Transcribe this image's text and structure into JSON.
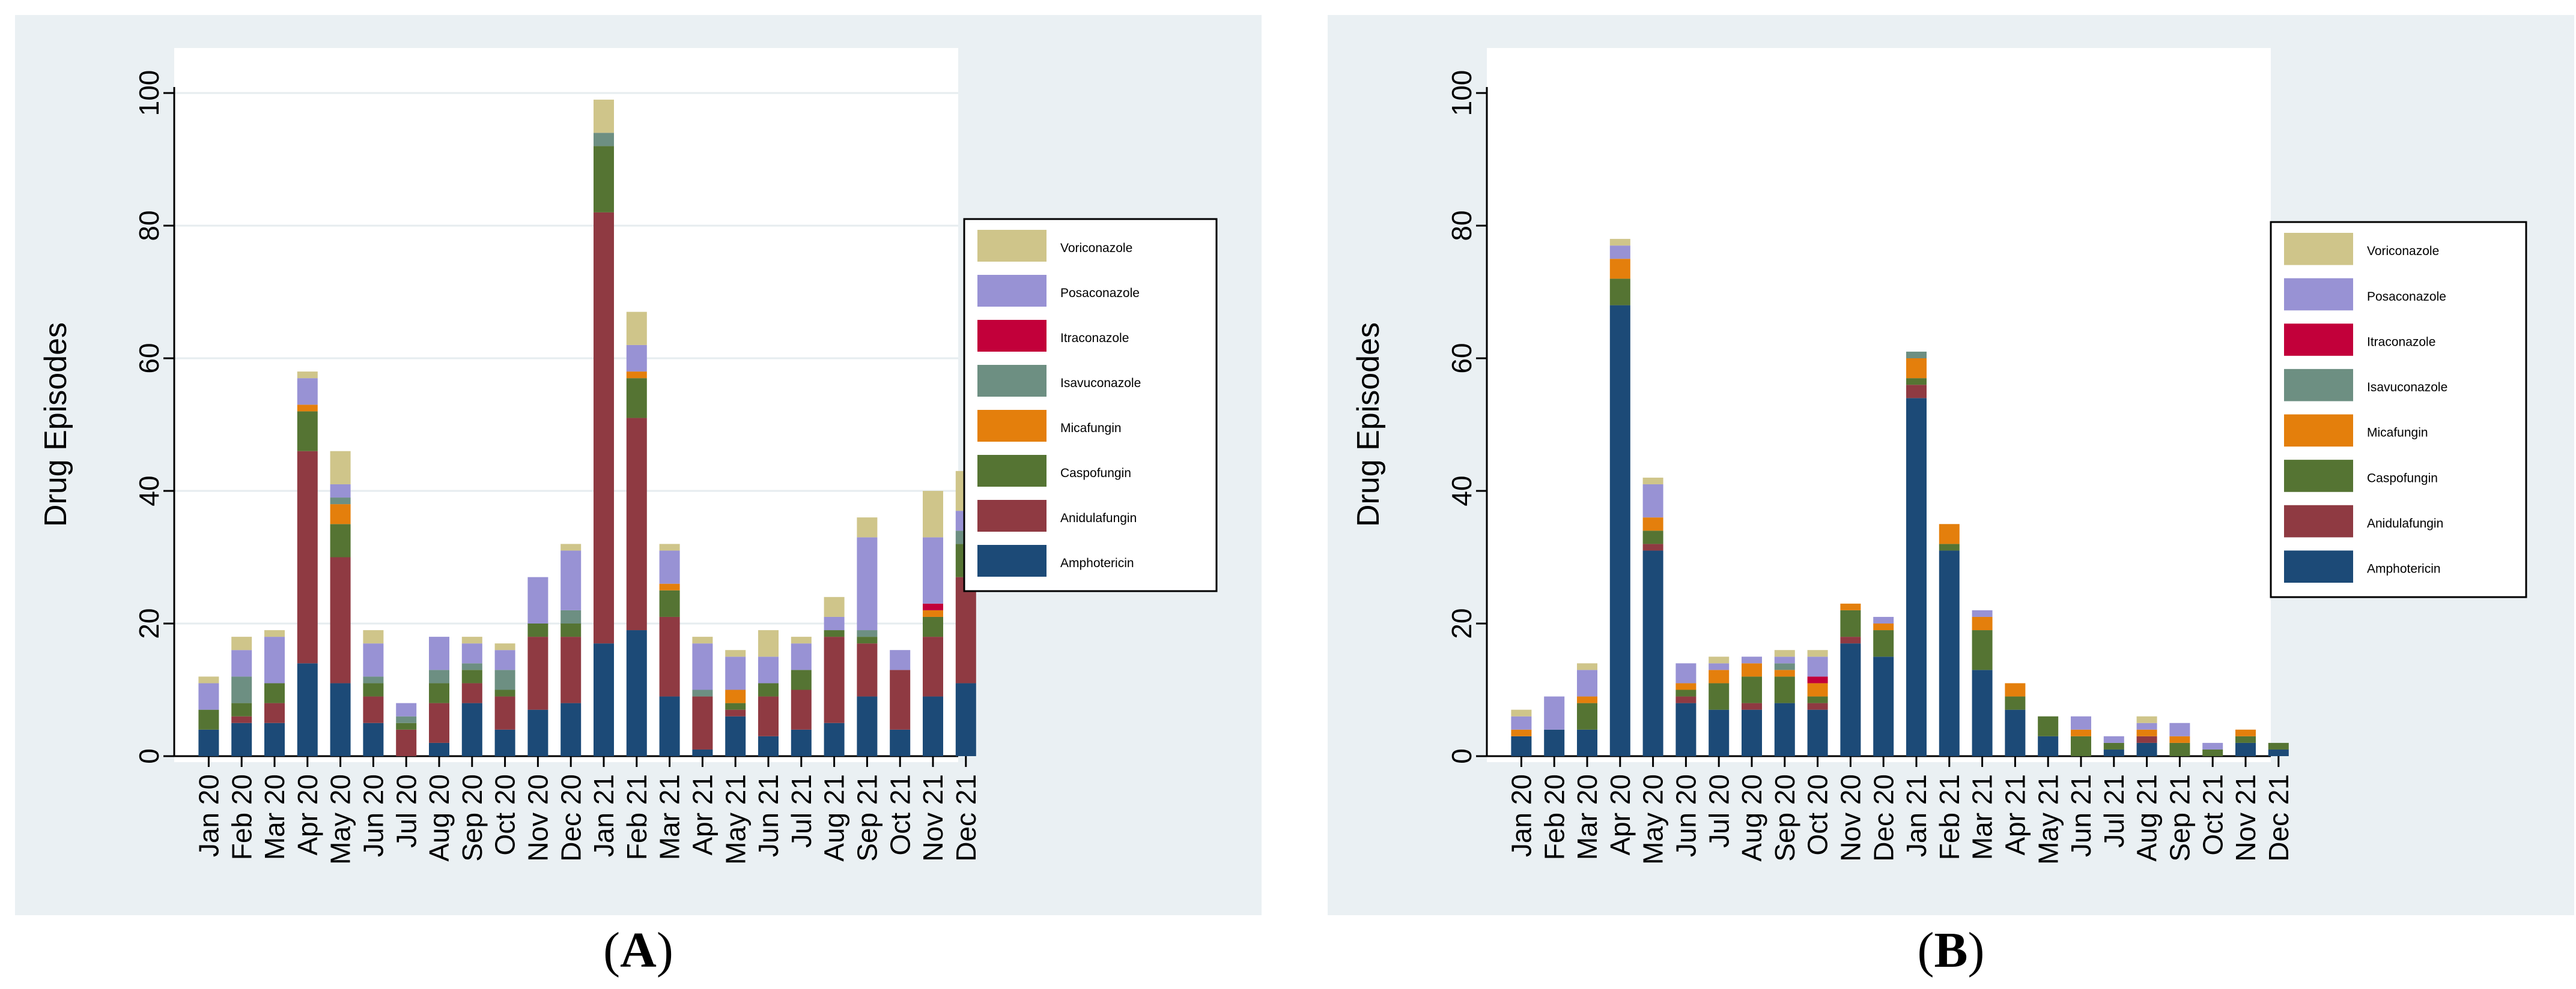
{
  "chart_data": [
    {
      "type": "bar",
      "stacked": true,
      "panel_label": "A",
      "ylabel": "Drug Episodes",
      "xlabel": "",
      "ylim": [
        0,
        100
      ],
      "yticks": [
        0,
        20,
        40,
        60,
        80,
        100
      ],
      "grid": true,
      "legend_position": "right",
      "categories": [
        "Jan 20",
        "Feb 20",
        "Mar 20",
        "Apr 20",
        "May 20",
        "Jun 20",
        "Jul 20",
        "Aug 20",
        "Sep 20",
        "Oct 20",
        "Nov 20",
        "Dec 20",
        "Jan 21",
        "Feb 21",
        "Mar 21",
        "Apr 21",
        "May 21",
        "Jun 21",
        "Jul 21",
        "Aug 21",
        "Sep 21",
        "Oct 21",
        "Nov 21",
        "Dec 21"
      ],
      "series": [
        {
          "name": "Amphotericin",
          "color": "#1c4a77",
          "values": [
            4,
            5,
            5,
            14,
            11,
            5,
            0,
            2,
            8,
            4,
            7,
            8,
            17,
            19,
            9,
            1,
            6,
            3,
            4,
            5,
            9,
            4,
            9,
            11
          ]
        },
        {
          "name": "Anidulafungin",
          "color": "#8f3a42",
          "values": [
            0,
            1,
            3,
            32,
            19,
            4,
            4,
            6,
            3,
            5,
            11,
            10,
            65,
            32,
            12,
            8,
            1,
            6,
            6,
            13,
            8,
            9,
            9,
            16
          ]
        },
        {
          "name": "Caspofungin",
          "color": "#557433",
          "values": [
            3,
            2,
            3,
            6,
            5,
            2,
            1,
            3,
            2,
            1,
            2,
            2,
            10,
            6,
            4,
            0,
            1,
            2,
            3,
            1,
            1,
            0,
            3,
            5
          ]
        },
        {
          "name": "Micafungin",
          "color": "#e47f0c",
          "values": [
            0,
            0,
            0,
            1,
            3,
            0,
            0,
            0,
            0,
            0,
            0,
            0,
            0,
            1,
            1,
            0,
            2,
            0,
            0,
            0,
            0,
            0,
            1,
            0
          ]
        },
        {
          "name": "Isavuconazole",
          "color": "#6d8f82",
          "values": [
            0,
            4,
            0,
            0,
            1,
            1,
            1,
            2,
            1,
            3,
            0,
            2,
            2,
            0,
            0,
            1,
            0,
            0,
            0,
            0,
            1,
            0,
            0,
            2
          ]
        },
        {
          "name": "Itraconazole",
          "color": "#c2003a",
          "values": [
            0,
            0,
            0,
            0,
            0,
            0,
            0,
            0,
            0,
            0,
            0,
            0,
            0,
            0,
            0,
            0,
            0,
            0,
            0,
            0,
            0,
            0,
            1,
            0
          ]
        },
        {
          "name": "Posaconazole",
          "color": "#9892d4",
          "values": [
            4,
            4,
            7,
            4,
            2,
            5,
            2,
            5,
            3,
            3,
            7,
            9,
            0,
            4,
            5,
            7,
            5,
            4,
            4,
            2,
            14,
            3,
            10,
            3
          ]
        },
        {
          "name": "Voriconazole",
          "color": "#cfc58a",
          "values": [
            1,
            2,
            1,
            1,
            5,
            2,
            0,
            0,
            1,
            1,
            0,
            1,
            5,
            5,
            1,
            1,
            1,
            4,
            1,
            3,
            3,
            0,
            7,
            6
          ]
        }
      ]
    },
    {
      "type": "bar",
      "stacked": true,
      "panel_label": "B",
      "ylabel": "Drug Episodes",
      "xlabel": "",
      "ylim": [
        0,
        100
      ],
      "yticks": [
        0,
        20,
        40,
        60,
        80,
        100
      ],
      "grid": false,
      "legend_position": "right",
      "categories": [
        "Jan 20",
        "Feb 20",
        "Mar 20",
        "Apr 20",
        "May 20",
        "Jun 20",
        "Jul 20",
        "Aug 20",
        "Sep 20",
        "Oct 20",
        "Nov 20",
        "Dec 20",
        "Jan 21",
        "Feb 21",
        "Mar 21",
        "Apr 21",
        "May 21",
        "Jun 21",
        "Jul 21",
        "Aug 21",
        "Sep 21",
        "Oct 21",
        "Nov 21",
        "Dec 21"
      ],
      "series": [
        {
          "name": "Amphotericin",
          "color": "#1c4a77",
          "values": [
            3,
            4,
            4,
            68,
            31,
            8,
            7,
            7,
            8,
            7,
            17,
            15,
            54,
            31,
            13,
            7,
            3,
            0,
            1,
            2,
            0,
            0,
            2,
            1
          ]
        },
        {
          "name": "Anidulafungin",
          "color": "#8f3a42",
          "values": [
            0,
            0,
            0,
            0,
            1,
            1,
            0,
            1,
            0,
            1,
            1,
            0,
            2,
            0,
            0,
            0,
            0,
            0,
            0,
            1,
            0,
            0,
            0,
            0
          ]
        },
        {
          "name": "Caspofungin",
          "color": "#557433",
          "values": [
            0,
            0,
            4,
            4,
            2,
            1,
            4,
            4,
            4,
            1,
            4,
            4,
            1,
            1,
            6,
            2,
            3,
            3,
            1,
            0,
            2,
            1,
            1,
            1
          ]
        },
        {
          "name": "Micafungin",
          "color": "#e47f0c",
          "values": [
            1,
            0,
            1,
            3,
            2,
            1,
            2,
            2,
            1,
            2,
            1,
            1,
            3,
            3,
            2,
            2,
            0,
            1,
            0,
            1,
            1,
            0,
            1,
            0
          ]
        },
        {
          "name": "Isavuconazole",
          "color": "#6d8f82",
          "values": [
            0,
            0,
            0,
            0,
            0,
            0,
            0,
            0,
            1,
            0,
            0,
            0,
            1,
            0,
            0,
            0,
            0,
            0,
            0,
            0,
            0,
            0,
            0,
            0
          ]
        },
        {
          "name": "Itraconazole",
          "color": "#c2003a",
          "values": [
            0,
            0,
            0,
            0,
            0,
            0,
            0,
            0,
            0,
            1,
            0,
            0,
            0,
            0,
            0,
            0,
            0,
            0,
            0,
            0,
            0,
            0,
            0,
            0
          ]
        },
        {
          "name": "Posaconazole",
          "color": "#9892d4",
          "values": [
            2,
            5,
            4,
            2,
            5,
            3,
            1,
            1,
            1,
            3,
            0,
            1,
            0,
            0,
            1,
            0,
            0,
            2,
            1,
            1,
            2,
            1,
            0,
            0
          ]
        },
        {
          "name": "Voriconazole",
          "color": "#cfc58a",
          "values": [
            1,
            0,
            1,
            1,
            1,
            0,
            1,
            0,
            1,
            1,
            0,
            0,
            0,
            0,
            0,
            0,
            0,
            0,
            0,
            1,
            0,
            0,
            0,
            0
          ]
        }
      ]
    }
  ],
  "captions": {
    "a": "A",
    "b": "B"
  }
}
